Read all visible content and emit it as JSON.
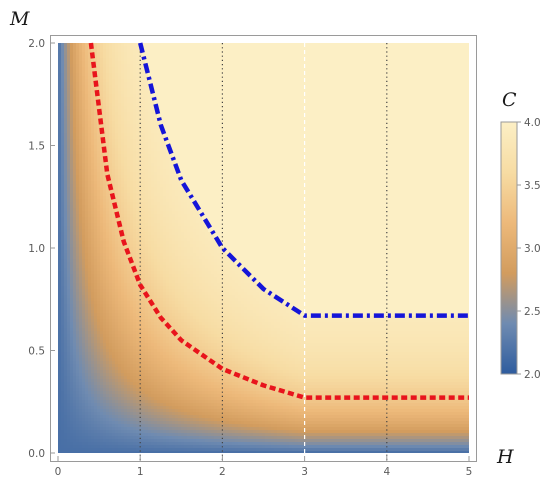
{
  "chart_data": {
    "type": "heatmap",
    "xlabel": "H",
    "ylabel": "M",
    "colorbar_label": "C",
    "xlim": [
      0,
      5
    ],
    "ylim": [
      0,
      2
    ],
    "xticks": [
      "0",
      "1",
      "2",
      "3",
      "4",
      "5"
    ],
    "yticks": [
      "0.0",
      "0.5",
      "1.0",
      "1.5",
      "2.0"
    ],
    "colorbar_range": [
      2.0,
      4.0
    ],
    "colorbar_ticks": [
      "2.0",
      "2.5",
      "3.0",
      "3.5",
      "4.0"
    ],
    "colormap": [
      "#2e5c9e",
      "#6f8bb1",
      "#d29c5e",
      "#edb97a",
      "#f7dca3",
      "#fcefc5"
    ],
    "vertical_reference_lines_x": [
      1,
      2,
      3,
      4
    ],
    "curves": [
      {
        "style": "dashed",
        "color": "#e8141c",
        "x": [
          0.4,
          0.6,
          0.8,
          1.0,
          1.25,
          1.5,
          2.0,
          2.5,
          3.0,
          5.0
        ],
        "y": [
          2.0,
          1.36,
          1.03,
          0.82,
          0.66,
          0.55,
          0.41,
          0.33,
          0.27,
          0.27
        ]
      },
      {
        "style": "dash-dot",
        "color": "#1515d8",
        "x": [
          1.0,
          1.25,
          1.5,
          2.0,
          2.5,
          3.0,
          5.0
        ],
        "y": [
          2.0,
          1.6,
          1.33,
          1.0,
          0.8,
          0.67,
          0.67
        ]
      }
    ]
  }
}
